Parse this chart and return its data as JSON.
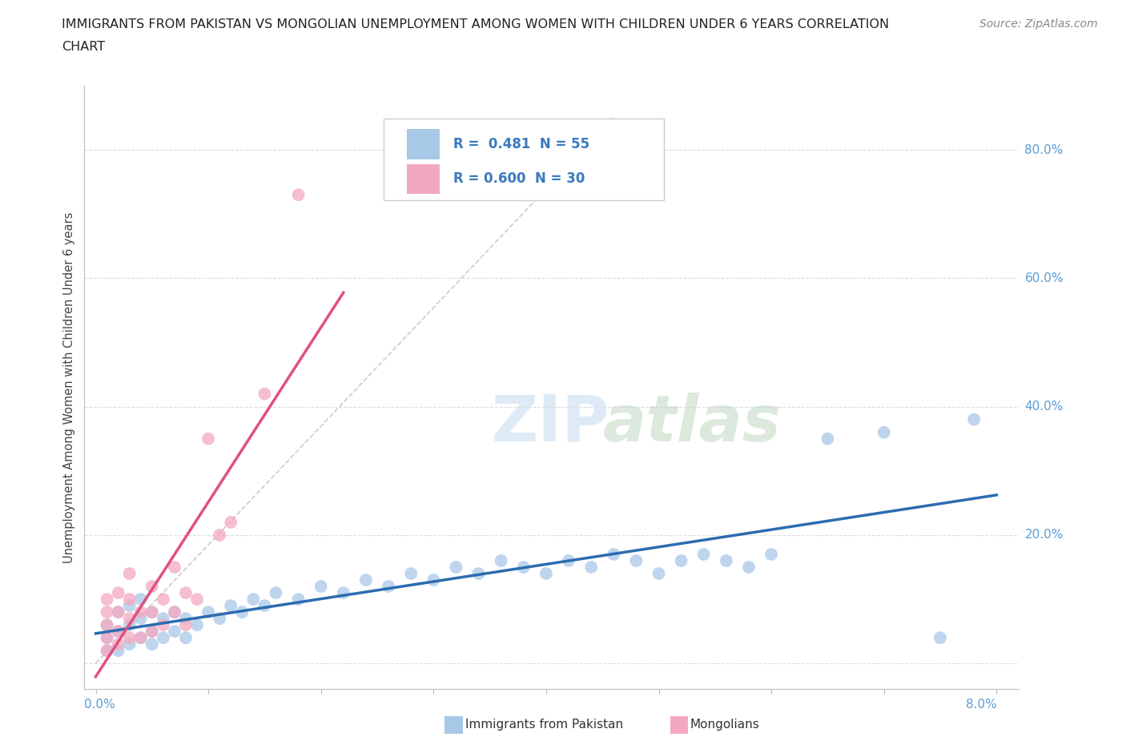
{
  "title_line1": "IMMIGRANTS FROM PAKISTAN VS MONGOLIAN UNEMPLOYMENT AMONG WOMEN WITH CHILDREN UNDER 6 YEARS CORRELATION",
  "title_line2": "CHART",
  "source": "Source: ZipAtlas.com",
  "ylabel": "Unemployment Among Women with Children Under 6 years",
  "color_pakistan": "#a8c8e8",
  "color_mongolia": "#f4a8c0",
  "reg_color_pakistan": "#2b6cb0",
  "reg_color_mongolia": "#e05080",
  "background_color": "#ffffff",
  "grid_color": "#dddddd",
  "pakistan_x": [
    0.001,
    0.001,
    0.001,
    0.002,
    0.002,
    0.002,
    0.003,
    0.003,
    0.003,
    0.004,
    0.004,
    0.004,
    0.005,
    0.005,
    0.005,
    0.006,
    0.006,
    0.007,
    0.007,
    0.008,
    0.008,
    0.009,
    0.01,
    0.011,
    0.012,
    0.013,
    0.014,
    0.015,
    0.016,
    0.018,
    0.02,
    0.022,
    0.024,
    0.026,
    0.028,
    0.03,
    0.032,
    0.034,
    0.036,
    0.038,
    0.04,
    0.042,
    0.044,
    0.046,
    0.048,
    0.05,
    0.052,
    0.054,
    0.056,
    0.058,
    0.06,
    0.065,
    0.07,
    0.075,
    0.078
  ],
  "pakistan_y": [
    0.02,
    0.04,
    0.06,
    0.02,
    0.05,
    0.08,
    0.03,
    0.06,
    0.09,
    0.04,
    0.07,
    0.1,
    0.03,
    0.05,
    0.08,
    0.04,
    0.07,
    0.05,
    0.08,
    0.04,
    0.07,
    0.06,
    0.08,
    0.07,
    0.09,
    0.08,
    0.1,
    0.09,
    0.11,
    0.1,
    0.12,
    0.11,
    0.13,
    0.12,
    0.14,
    0.13,
    0.15,
    0.14,
    0.16,
    0.15,
    0.14,
    0.16,
    0.15,
    0.17,
    0.16,
    0.14,
    0.16,
    0.17,
    0.16,
    0.15,
    0.17,
    0.35,
    0.36,
    0.04,
    0.38
  ],
  "mongolia_x": [
    0.001,
    0.001,
    0.001,
    0.001,
    0.001,
    0.002,
    0.002,
    0.002,
    0.002,
    0.003,
    0.003,
    0.003,
    0.003,
    0.004,
    0.004,
    0.005,
    0.005,
    0.005,
    0.006,
    0.006,
    0.007,
    0.007,
    0.008,
    0.008,
    0.009,
    0.01,
    0.011,
    0.012,
    0.015,
    0.018
  ],
  "mongolia_y": [
    0.02,
    0.04,
    0.06,
    0.08,
    0.1,
    0.03,
    0.05,
    0.08,
    0.11,
    0.04,
    0.07,
    0.1,
    0.14,
    0.04,
    0.08,
    0.05,
    0.08,
    0.12,
    0.06,
    0.1,
    0.08,
    0.15,
    0.06,
    0.11,
    0.1,
    0.35,
    0.2,
    0.22,
    0.42,
    0.73
  ],
  "xlim": [
    -0.001,
    0.082
  ],
  "ylim": [
    -0.04,
    0.9
  ]
}
